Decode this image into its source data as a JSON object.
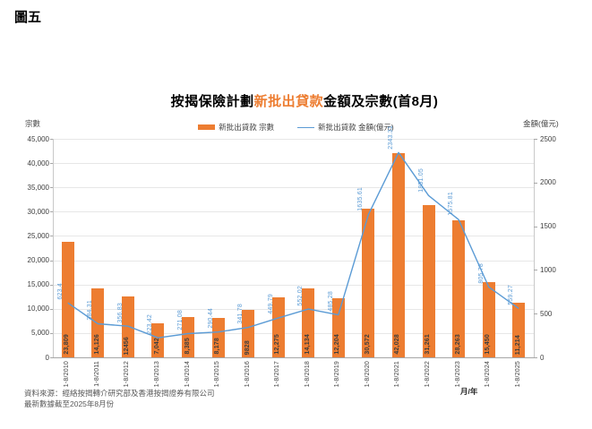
{
  "figure_label": "圖五",
  "title": {
    "prefix": "按揭保險計劃",
    "highlight": "新批出貸款",
    "suffix": "金額及宗數(首8月)",
    "highlight_color": "#ED7D31"
  },
  "legend": {
    "bar_label": "新批出貸款 宗數",
    "line_label": "新批出貸款 金額(億元)"
  },
  "left_axis": {
    "title": "宗數",
    "tick_values": [
      0,
      5000,
      10000,
      15000,
      20000,
      25000,
      30000,
      35000,
      40000,
      45000
    ],
    "tick_labels": [
      "0",
      "5,000",
      "10,000",
      "15,000",
      "20,000",
      "25,000",
      "30,000",
      "35,000",
      "40,000",
      "45,000"
    ]
  },
  "right_axis": {
    "title": "金額(億元)",
    "tick_values": [
      0,
      500,
      1000,
      1500,
      2000,
      2500
    ],
    "tick_labels": [
      "0",
      "500",
      "1000",
      "1500",
      "2000",
      "2500"
    ]
  },
  "x_axis": {
    "title": "月/年"
  },
  "chart_data": {
    "type": "bar",
    "title": "按揭保險計劃新批出貸款金額及宗數(首8月)",
    "categories": [
      "1-8/2010",
      "1-8/2011",
      "1-8/2012",
      "1-8/2013",
      "1-8/2014",
      "1-8/2015",
      "1-8/2016",
      "1-8/2017",
      "1-8/2018",
      "1-8/2019",
      "1-8/2020",
      "1-8/2021",
      "1-8/2022",
      "1-8/2023",
      "1-8/2024",
      "1-8/2025"
    ],
    "left_ylim": [
      0,
      45000
    ],
    "right_ylim": [
      0,
      2500
    ],
    "grid": true,
    "legend_position": "top",
    "series": [
      {
        "name": "新批出貸款 宗數",
        "type": "bar",
        "axis": "left",
        "color": "#ED7D31",
        "values": [
          23809,
          14126,
          12456,
          7042,
          8385,
          8178,
          9828,
          12275,
          14134,
          12204,
          30572,
          42028,
          31261,
          28263,
          15450,
          11214
        ],
        "data_labels": [
          "23,809",
          "14,126",
          "12456",
          "7,042",
          "8,385",
          "8,178",
          "9828",
          "12,275",
          "14,134",
          "12,204",
          "30,572",
          "42,028",
          "31,261",
          "28,263",
          "15,450",
          "11,214"
        ]
      },
      {
        "name": "新批出貸款 金額(億元)",
        "type": "line",
        "axis": "right",
        "color": "#5B9BD5",
        "values": [
          623.4,
          384.31,
          356.83,
          223.42,
          271.08,
          290.44,
          341.78,
          449.79,
          552.02,
          485.28,
          1635.61,
          2343.31,
          1851.05,
          1575.81,
          805.78,
          559.27
        ],
        "data_labels": [
          "623.4",
          "384.31",
          "356.83",
          "223.42",
          "271.08",
          "290.44",
          "341.78",
          "449.79",
          "552.02",
          "485.28",
          "1635.61",
          "2343.31",
          "1851.05",
          "1575.81",
          "805.78",
          "559.27"
        ]
      }
    ]
  },
  "footnotes": {
    "source": "資料來源：經絡按揭轉介研究部及香港按揭證券有限公司",
    "cutoff": "最新數據截至2025年8月份"
  }
}
